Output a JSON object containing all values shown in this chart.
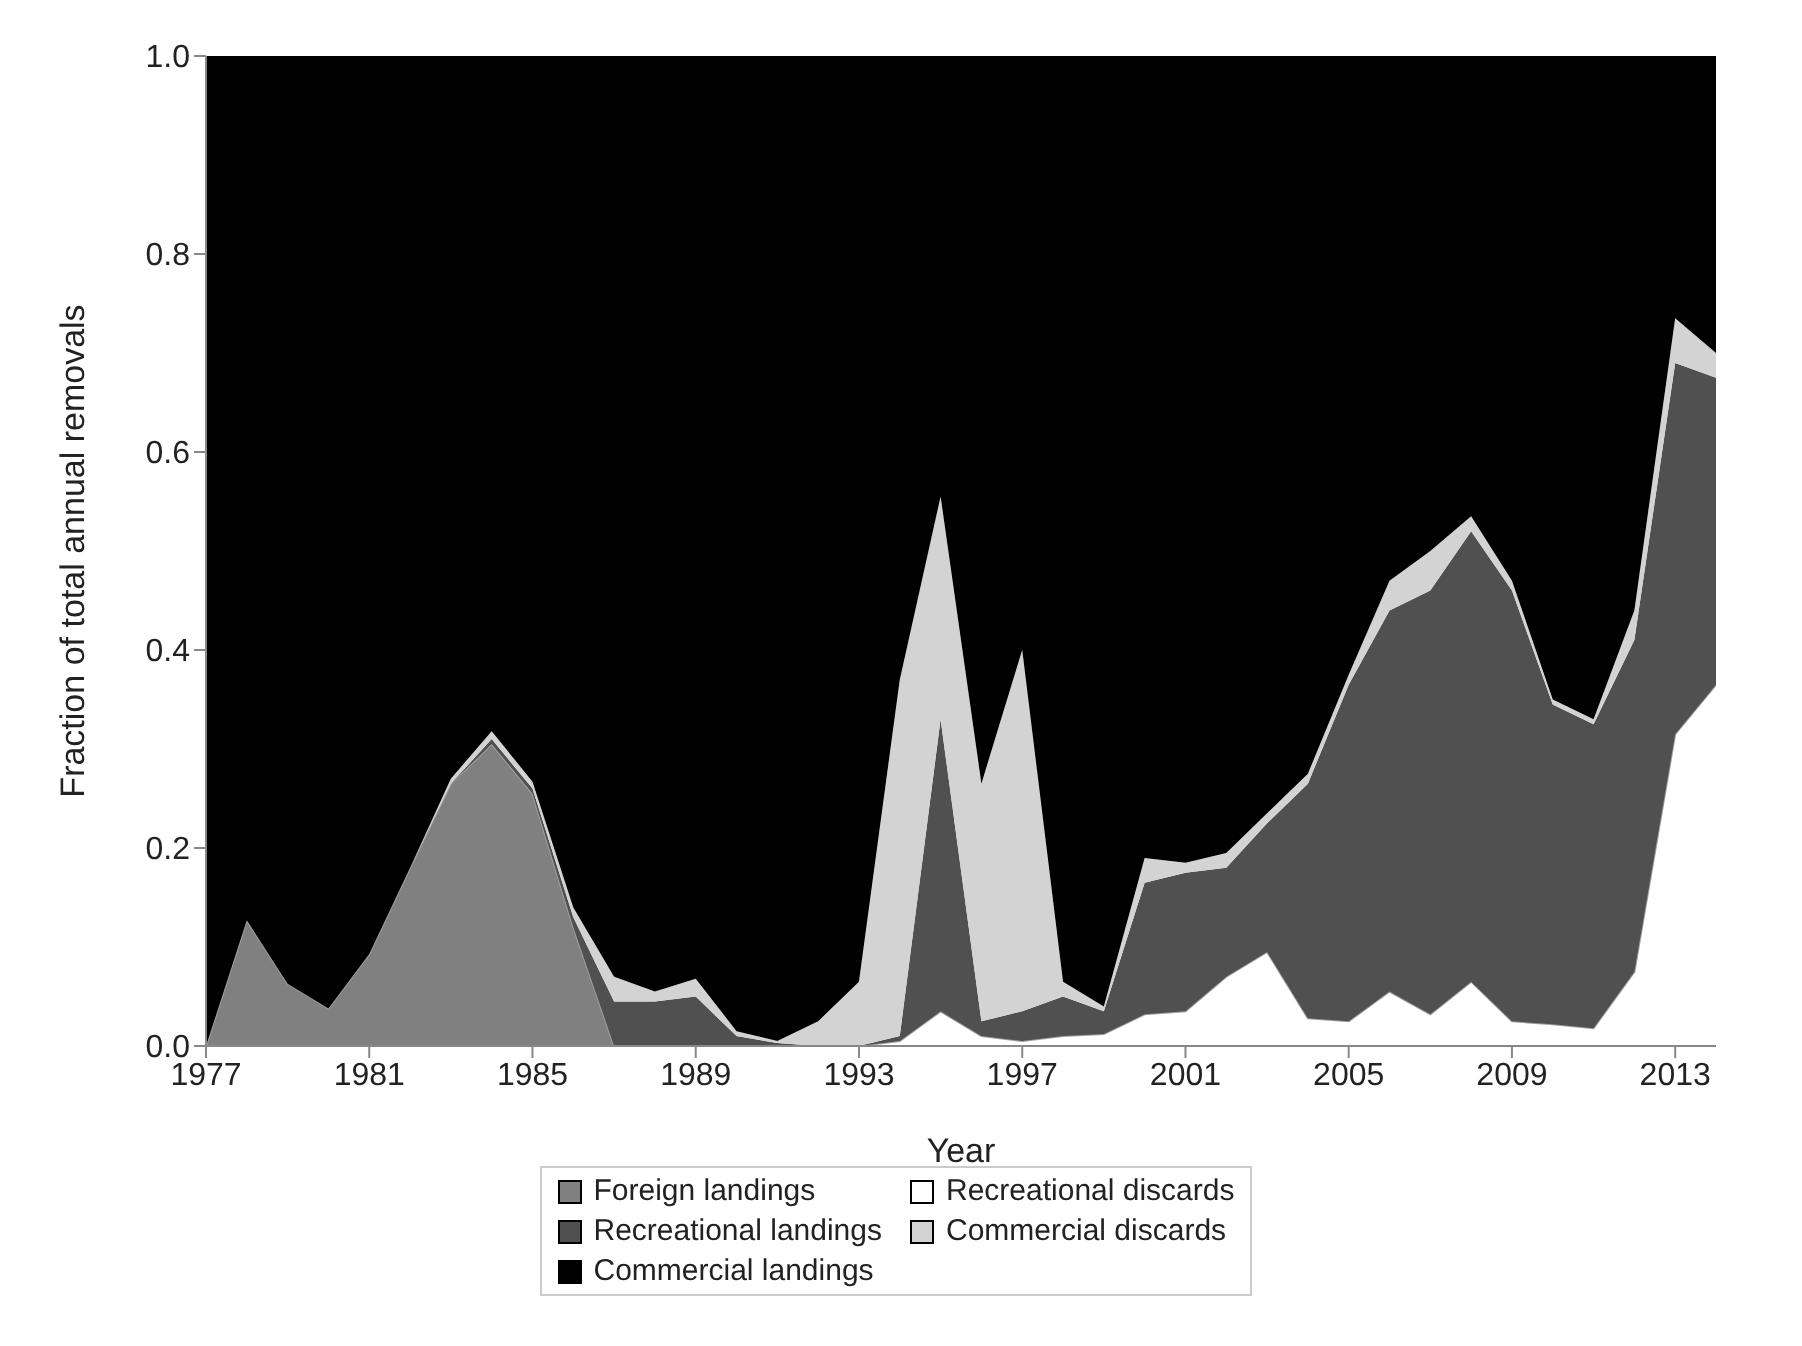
{
  "chart_data": {
    "type": "area",
    "stacked": true,
    "xlabel": "Year",
    "ylabel": "Fraction of total annual removals",
    "x": [
      1977,
      1978,
      1979,
      1980,
      1981,
      1982,
      1983,
      1984,
      1985,
      1986,
      1987,
      1988,
      1989,
      1990,
      1991,
      1992,
      1993,
      1994,
      1995,
      1996,
      1997,
      1998,
      1999,
      2000,
      2001,
      2002,
      2003,
      2004,
      2005,
      2006,
      2007,
      2008,
      2009,
      2010,
      2011,
      2012,
      2013,
      2014
    ],
    "xlim": [
      1977,
      2014
    ],
    "xticks": [
      1977,
      1981,
      1985,
      1989,
      1993,
      1997,
      2001,
      2005,
      2009,
      2013
    ],
    "ylim": [
      0,
      1
    ],
    "yticks": [
      {
        "value": 0,
        "label": "0.0"
      },
      0.2,
      0.4,
      0.6,
      0.8,
      {
        "value": 1,
        "label": "1.0"
      }
    ],
    "grid": false,
    "legend": "bottom",
    "series": [
      {
        "name": "Foreign landings",
        "color": "#808080",
        "values": [
          0,
          0.127,
          0.063,
          0.038,
          0.093,
          0.18,
          0.265,
          0.305,
          0.255,
          0.12,
          0,
          0,
          0,
          0,
          0,
          0,
          0,
          0,
          0,
          0,
          0,
          0,
          0,
          0,
          0,
          0,
          0,
          0,
          0,
          0,
          0,
          0,
          0,
          0,
          0,
          0,
          0,
          0
        ]
      },
      {
        "name": "Recreational discards",
        "color": "#ffffff",
        "values": [
          0,
          0,
          0,
          0,
          0,
          0,
          0,
          0,
          0,
          0,
          0,
          0,
          0,
          0,
          0,
          0,
          0,
          0.005,
          0.035,
          0.01,
          0.005,
          0.01,
          0.012,
          0.032,
          0.035,
          0.07,
          0.095,
          0.028,
          0.025,
          0.055,
          0.032,
          0.065,
          0.025,
          0.022,
          0.018,
          0.075,
          0.315,
          0.365
        ]
      },
      {
        "name": "Recreational landings",
        "color": "#505050",
        "values": [
          0,
          0,
          0,
          0,
          0,
          0,
          0,
          0.005,
          0.005,
          0.01,
          0.045,
          0.045,
          0.05,
          0.01,
          0.003,
          0,
          0,
          0.005,
          0.295,
          0.015,
          0.03,
          0.04,
          0.023,
          0.133,
          0.14,
          0.11,
          0.13,
          0.237,
          0.34,
          0.385,
          0.428,
          0.455,
          0.435,
          0.323,
          0.307,
          0.335,
          0.375,
          0.31
        ]
      },
      {
        "name": "Commercial discards",
        "color": "#d3d3d3",
        "values": [
          0,
          0,
          0,
          0,
          0,
          0,
          0.005,
          0.008,
          0.007,
          0.01,
          0.025,
          0.01,
          0.018,
          0.005,
          0.002,
          0.025,
          0.065,
          0.36,
          0.225,
          0.24,
          0.365,
          0.015,
          0.005,
          0.025,
          0.01,
          0.015,
          0.01,
          0.01,
          0.01,
          0.03,
          0.04,
          0.015,
          0.01,
          0.005,
          0.005,
          0.03,
          0.045,
          0.025
        ]
      },
      {
        "name": "Commercial landings",
        "color": "#000000",
        "values": [
          1,
          0.873,
          0.937,
          0.962,
          0.907,
          0.82,
          0.73,
          0.682,
          0.733,
          0.86,
          0.93,
          0.945,
          0.932,
          0.985,
          0.995,
          0.975,
          0.935,
          0.63,
          0.445,
          0.735,
          0.6,
          0.935,
          0.96,
          0.81,
          0.815,
          0.805,
          0.765,
          0.725,
          0.625,
          0.53,
          0.5,
          0.465,
          0.53,
          0.65,
          0.67,
          0.56,
          0.265,
          0.3
        ]
      }
    ]
  }
}
